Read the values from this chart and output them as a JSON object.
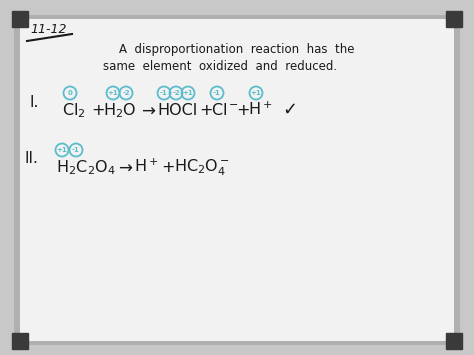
{
  "bg_color": "#c8c8c8",
  "board_color": "#e8e8e8",
  "board_inner": "#f2f2f2",
  "handwriting_color": "#1a1a1a",
  "cyan_color": "#5bbccc",
  "title": "11-12",
  "line1": "A  disproportionation  reaction  has  the",
  "line2": "same  element  oxidized  and  reduced.",
  "check": "✓",
  "figsize": [
    4.74,
    3.55
  ],
  "dpi": 100
}
